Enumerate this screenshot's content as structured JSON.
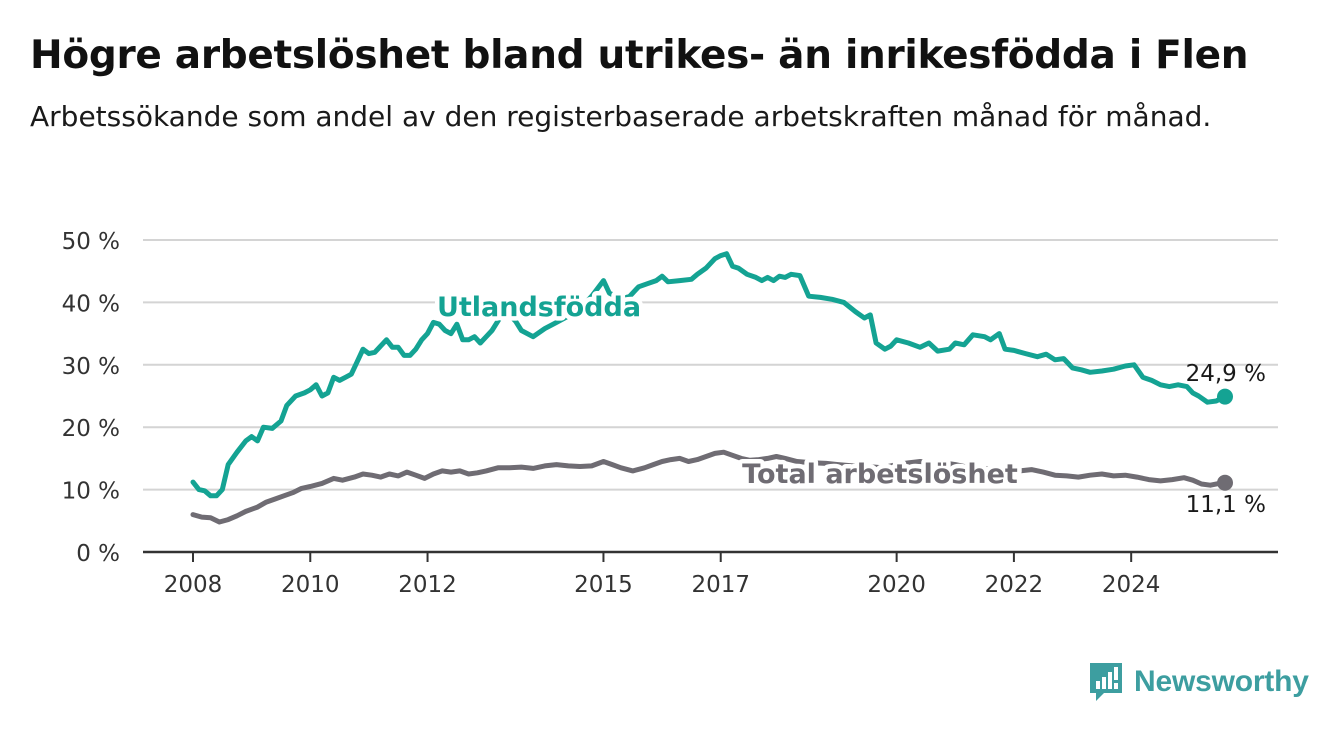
{
  "title": "Högre arbetslöshet bland utrikes- än inrikesfödda i Flen",
  "subtitle": "Arbetssökande som andel av den registerbaserade arbetskraften månad för månad.",
  "brand": {
    "name": "Newsworthy"
  },
  "colors": {
    "utlandsfodda": "#14a393",
    "total": "#6f6c73",
    "grid": "#d4d4d4",
    "axis": "#333333"
  },
  "chart_data": {
    "type": "line",
    "yticks": [
      "0 %",
      "10 %",
      "20 %",
      "30 %",
      "40 %",
      "50 %"
    ],
    "ylim": [
      0,
      50
    ],
    "xlim": [
      2007.8,
      2025.6
    ],
    "xticks": [
      {
        "label": "2008",
        "value": 2008
      },
      {
        "label": "2010",
        "value": 2010
      },
      {
        "label": "2012",
        "value": 2012
      },
      {
        "label": "2015",
        "value": 2015
      },
      {
        "label": "2017",
        "value": 2017
      },
      {
        "label": "2020",
        "value": 2020
      },
      {
        "label": "2022",
        "value": 2022
      },
      {
        "label": "2024",
        "value": 2024
      }
    ],
    "grid": true,
    "series": [
      {
        "name": "Utlandsfödda",
        "color": "#14a393",
        "end_label": "24,9 %",
        "points": [
          [
            2008.0,
            11.2
          ],
          [
            2008.1,
            10.0
          ],
          [
            2008.2,
            9.8
          ],
          [
            2008.3,
            9.0
          ],
          [
            2008.4,
            9.0
          ],
          [
            2008.5,
            10.0
          ],
          [
            2008.6,
            14.0
          ],
          [
            2008.75,
            16.0
          ],
          [
            2008.9,
            17.8
          ],
          [
            2009.0,
            18.5
          ],
          [
            2009.1,
            17.8
          ],
          [
            2009.2,
            20.0
          ],
          [
            2009.35,
            19.8
          ],
          [
            2009.5,
            21.0
          ],
          [
            2009.6,
            23.5
          ],
          [
            2009.75,
            25.0
          ],
          [
            2009.9,
            25.5
          ],
          [
            2010.0,
            26.0
          ],
          [
            2010.1,
            26.8
          ],
          [
            2010.2,
            25.0
          ],
          [
            2010.3,
            25.5
          ],
          [
            2010.4,
            28.0
          ],
          [
            2010.5,
            27.5
          ],
          [
            2010.6,
            28.0
          ],
          [
            2010.7,
            28.5
          ],
          [
            2010.8,
            30.5
          ],
          [
            2010.9,
            32.5
          ],
          [
            2011.0,
            31.8
          ],
          [
            2011.1,
            32.0
          ],
          [
            2011.2,
            33.0
          ],
          [
            2011.3,
            34.0
          ],
          [
            2011.4,
            32.8
          ],
          [
            2011.5,
            32.8
          ],
          [
            2011.6,
            31.5
          ],
          [
            2011.7,
            31.5
          ],
          [
            2011.8,
            32.5
          ],
          [
            2011.9,
            34.0
          ],
          [
            2012.0,
            35.0
          ],
          [
            2012.1,
            36.8
          ],
          [
            2012.2,
            36.5
          ],
          [
            2012.3,
            35.5
          ],
          [
            2012.4,
            35.0
          ],
          [
            2012.5,
            36.5
          ],
          [
            2012.6,
            34.0
          ],
          [
            2012.7,
            34.0
          ],
          [
            2012.8,
            34.5
          ],
          [
            2012.9,
            33.5
          ],
          [
            2013.0,
            34.5
          ],
          [
            2013.1,
            35.5
          ],
          [
            2013.2,
            37.0
          ],
          [
            2013.3,
            38.5
          ],
          [
            2013.4,
            38.0
          ],
          [
            2013.5,
            37.0
          ],
          [
            2013.6,
            35.5
          ],
          [
            2013.8,
            34.5
          ],
          [
            2014.0,
            35.8
          ],
          [
            2014.2,
            36.8
          ],
          [
            2014.4,
            37.8
          ],
          [
            2014.6,
            39.0
          ],
          [
            2014.8,
            41.0
          ],
          [
            2015.0,
            43.5
          ],
          [
            2015.1,
            41.5
          ],
          [
            2015.2,
            41.0
          ],
          [
            2015.3,
            40.5
          ],
          [
            2015.45,
            41.0
          ],
          [
            2015.6,
            42.5
          ],
          [
            2015.75,
            43.0
          ],
          [
            2015.9,
            43.5
          ],
          [
            2016.0,
            44.2
          ],
          [
            2016.1,
            43.3
          ],
          [
            2016.3,
            43.5
          ],
          [
            2016.5,
            43.7
          ],
          [
            2016.6,
            44.5
          ],
          [
            2016.75,
            45.5
          ],
          [
            2016.9,
            47.0
          ],
          [
            2017.0,
            47.5
          ],
          [
            2017.1,
            47.8
          ],
          [
            2017.2,
            45.8
          ],
          [
            2017.3,
            45.5
          ],
          [
            2017.45,
            44.5
          ],
          [
            2017.6,
            44.0
          ],
          [
            2017.7,
            43.5
          ],
          [
            2017.8,
            44.0
          ],
          [
            2017.9,
            43.5
          ],
          [
            2018.0,
            44.2
          ],
          [
            2018.1,
            44.0
          ],
          [
            2018.2,
            44.5
          ],
          [
            2018.35,
            44.3
          ],
          [
            2018.5,
            41.0
          ],
          [
            2018.7,
            40.8
          ],
          [
            2018.9,
            40.5
          ],
          [
            2019.1,
            40.0
          ],
          [
            2019.3,
            38.5
          ],
          [
            2019.45,
            37.5
          ],
          [
            2019.55,
            38.0
          ],
          [
            2019.65,
            33.5
          ],
          [
            2019.8,
            32.5
          ],
          [
            2019.9,
            33.0
          ],
          [
            2020.0,
            34.0
          ],
          [
            2020.2,
            33.5
          ],
          [
            2020.4,
            32.8
          ],
          [
            2020.55,
            33.5
          ],
          [
            2020.7,
            32.2
          ],
          [
            2020.9,
            32.5
          ],
          [
            2021.0,
            33.5
          ],
          [
            2021.15,
            33.2
          ],
          [
            2021.3,
            34.8
          ],
          [
            2021.5,
            34.5
          ],
          [
            2021.6,
            34.0
          ],
          [
            2021.75,
            35.0
          ],
          [
            2021.85,
            32.5
          ],
          [
            2022.0,
            32.3
          ],
          [
            2022.2,
            31.8
          ],
          [
            2022.4,
            31.3
          ],
          [
            2022.55,
            31.7
          ],
          [
            2022.7,
            30.8
          ],
          [
            2022.85,
            31.0
          ],
          [
            2023.0,
            29.5
          ],
          [
            2023.15,
            29.2
          ],
          [
            2023.3,
            28.8
          ],
          [
            2023.5,
            29.0
          ],
          [
            2023.7,
            29.3
          ],
          [
            2023.9,
            29.8
          ],
          [
            2024.05,
            30.0
          ],
          [
            2024.2,
            28.0
          ],
          [
            2024.35,
            27.5
          ],
          [
            2024.5,
            26.8
          ],
          [
            2024.65,
            26.5
          ],
          [
            2024.8,
            26.8
          ],
          [
            2024.95,
            26.5
          ],
          [
            2025.05,
            25.5
          ],
          [
            2025.15,
            25.0
          ],
          [
            2025.3,
            24.0
          ],
          [
            2025.45,
            24.2
          ],
          [
            2025.6,
            24.9
          ]
        ]
      },
      {
        "name": "Total arbetslöshet",
        "color": "#6f6c73",
        "end_label": "11,1 %",
        "points": [
          [
            2008.0,
            6.0
          ],
          [
            2008.15,
            5.6
          ],
          [
            2008.3,
            5.5
          ],
          [
            2008.45,
            4.8
          ],
          [
            2008.6,
            5.2
          ],
          [
            2008.75,
            5.8
          ],
          [
            2008.9,
            6.5
          ],
          [
            2009.1,
            7.2
          ],
          [
            2009.25,
            8.0
          ],
          [
            2009.4,
            8.5
          ],
          [
            2009.55,
            9.0
          ],
          [
            2009.7,
            9.5
          ],
          [
            2009.85,
            10.2
          ],
          [
            2010.0,
            10.5
          ],
          [
            2010.2,
            11.0
          ],
          [
            2010.4,
            11.8
          ],
          [
            2010.55,
            11.5
          ],
          [
            2010.75,
            12.0
          ],
          [
            2010.9,
            12.5
          ],
          [
            2011.05,
            12.3
          ],
          [
            2011.2,
            12.0
          ],
          [
            2011.35,
            12.5
          ],
          [
            2011.5,
            12.2
          ],
          [
            2011.65,
            12.8
          ],
          [
            2011.8,
            12.3
          ],
          [
            2011.95,
            11.8
          ],
          [
            2012.1,
            12.5
          ],
          [
            2012.25,
            13.0
          ],
          [
            2012.4,
            12.8
          ],
          [
            2012.55,
            13.0
          ],
          [
            2012.7,
            12.5
          ],
          [
            2012.85,
            12.7
          ],
          [
            2013.0,
            13.0
          ],
          [
            2013.2,
            13.5
          ],
          [
            2013.4,
            13.5
          ],
          [
            2013.6,
            13.6
          ],
          [
            2013.8,
            13.4
          ],
          [
            2014.0,
            13.8
          ],
          [
            2014.2,
            14.0
          ],
          [
            2014.4,
            13.8
          ],
          [
            2014.6,
            13.7
          ],
          [
            2014.8,
            13.8
          ],
          [
            2015.0,
            14.5
          ],
          [
            2015.15,
            14.0
          ],
          [
            2015.3,
            13.5
          ],
          [
            2015.5,
            13.0
          ],
          [
            2015.7,
            13.5
          ],
          [
            2015.85,
            14.0
          ],
          [
            2016.0,
            14.5
          ],
          [
            2016.15,
            14.8
          ],
          [
            2016.3,
            15.0
          ],
          [
            2016.45,
            14.5
          ],
          [
            2016.6,
            14.8
          ],
          [
            2016.75,
            15.3
          ],
          [
            2016.9,
            15.8
          ],
          [
            2017.05,
            16.0
          ],
          [
            2017.2,
            15.5
          ],
          [
            2017.35,
            15.0
          ],
          [
            2017.5,
            14.7
          ],
          [
            2017.65,
            14.8
          ],
          [
            2017.8,
            15.0
          ],
          [
            2017.95,
            15.3
          ],
          [
            2018.1,
            15.0
          ],
          [
            2018.3,
            14.5
          ],
          [
            2018.55,
            14.3
          ],
          [
            2018.8,
            14.2
          ],
          [
            2019.0,
            14.0
          ],
          [
            2019.25,
            13.8
          ],
          [
            2019.5,
            13.7
          ],
          [
            2019.75,
            13.5
          ],
          [
            2020.0,
            14.0
          ],
          [
            2020.2,
            14.3
          ],
          [
            2020.4,
            14.5
          ],
          [
            2020.6,
            14.2
          ],
          [
            2020.8,
            14.3
          ],
          [
            2021.0,
            14.0
          ],
          [
            2021.15,
            13.7
          ],
          [
            2021.3,
            13.4
          ],
          [
            2021.5,
            13.3
          ],
          [
            2021.7,
            13.5
          ],
          [
            2021.9,
            13.2
          ],
          [
            2022.1,
            13.0
          ],
          [
            2022.3,
            13.2
          ],
          [
            2022.5,
            12.8
          ],
          [
            2022.7,
            12.3
          ],
          [
            2022.9,
            12.2
          ],
          [
            2023.1,
            12.0
          ],
          [
            2023.3,
            12.3
          ],
          [
            2023.5,
            12.5
          ],
          [
            2023.7,
            12.2
          ],
          [
            2023.9,
            12.3
          ],
          [
            2024.1,
            12.0
          ],
          [
            2024.3,
            11.6
          ],
          [
            2024.5,
            11.4
          ],
          [
            2024.7,
            11.6
          ],
          [
            2024.9,
            11.9
          ],
          [
            2025.05,
            11.5
          ],
          [
            2025.2,
            10.9
          ],
          [
            2025.35,
            10.7
          ],
          [
            2025.5,
            11.0
          ],
          [
            2025.6,
            11.1
          ]
        ]
      }
    ]
  }
}
